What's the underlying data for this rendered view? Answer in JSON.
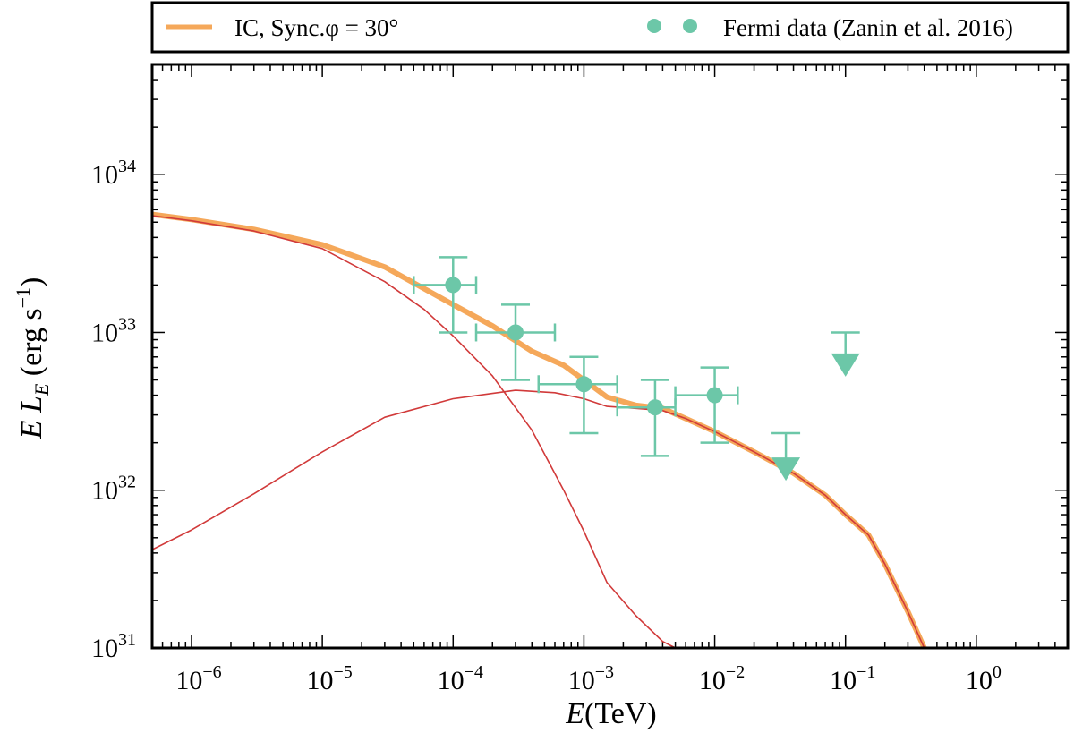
{
  "chart_data": {
    "type": "line",
    "x_scale": "log",
    "y_scale": "log",
    "xlim": [
      5e-07,
      5
    ],
    "ylim": [
      1e+31,
      5e+34
    ],
    "xlabel": {
      "italic": "E",
      "rest": "(TeV)"
    },
    "ylabel": {
      "italic_e": "E",
      "italic_l": "L",
      "sub": "E",
      "unit": "(erg s",
      "unit_sup": "−1",
      "unit_close": ")"
    },
    "x_ticks": [
      {
        "value": 1e-06,
        "base": "10",
        "exp": "−6"
      },
      {
        "value": 1e-05,
        "base": "10",
        "exp": "−5"
      },
      {
        "value": 0.0001,
        "base": "10",
        "exp": "−4"
      },
      {
        "value": 0.001,
        "base": "10",
        "exp": "−3"
      },
      {
        "value": 0.01,
        "base": "10",
        "exp": "−2"
      },
      {
        "value": 0.1,
        "base": "10",
        "exp": "−1"
      },
      {
        "value": 1,
        "base": "10",
        "exp": "0"
      }
    ],
    "y_ticks": [
      {
        "value": 1e+31,
        "base": "10",
        "exp": "31"
      },
      {
        "value": 1e+32,
        "base": "10",
        "exp": "32"
      },
      {
        "value": 1e+33,
        "base": "10",
        "exp": "33"
      },
      {
        "value": 1e+34,
        "base": "10",
        "exp": "34"
      }
    ],
    "legend": {
      "placement": "top, above plot",
      "entries": [
        {
          "label": "IC, Sync.φ = 30°",
          "kind": "line",
          "color": "#f5a85a"
        },
        {
          "label": "Fermi data (Zanin et al. 2016)",
          "kind": "markers",
          "color": "#6cc7a8"
        }
      ]
    },
    "series": [
      {
        "name": "IC, Sync.φ = 30°",
        "kind": "total",
        "color": "#f5a85a",
        "outline_color": "#d13a3a",
        "points": [
          [
            5e-07,
            5.6e+33
          ],
          [
            1e-06,
            5.2e+33
          ],
          [
            3e-06,
            4.5e+33
          ],
          [
            1e-05,
            3.6e+33
          ],
          [
            3e-05,
            2.6e+33
          ],
          [
            0.0001,
            1.5e+33
          ],
          [
            0.0002,
            1.1e+33
          ],
          [
            0.0004,
            7.6e+32
          ],
          [
            0.0007,
            6.2e+32
          ],
          [
            0.001,
            5e+32
          ],
          [
            0.0015,
            3.9e+32
          ],
          [
            0.0025,
            3.45e+32
          ],
          [
            0.004,
            3.3e+32
          ],
          [
            0.006,
            2.85e+32
          ],
          [
            0.01,
            2.35e+32
          ],
          [
            0.02,
            1.75e+32
          ],
          [
            0.04,
            1.28e+32
          ],
          [
            0.07,
            9.3e+31
          ],
          [
            0.1,
            7e+31
          ],
          [
            0.15,
            5.2e+31
          ],
          [
            0.2,
            3.4e+31
          ],
          [
            0.3,
            1.7e+31
          ],
          [
            0.4,
            1e+31
          ]
        ]
      },
      {
        "name": "",
        "kind": "synchrotron",
        "color": "#d13a3a",
        "points": [
          [
            5e-07,
            5.5e+33
          ],
          [
            1e-06,
            5.1e+33
          ],
          [
            3e-06,
            4.4e+33
          ],
          [
            1e-05,
            3.4e+33
          ],
          [
            3e-05,
            2.1e+33
          ],
          [
            6e-05,
            1.4e+33
          ],
          [
            0.0001,
            9.5e+32
          ],
          [
            0.0002,
            5.3e+32
          ],
          [
            0.0004,
            2.4e+32
          ],
          [
            0.0007,
            1e+32
          ],
          [
            0.001,
            5.5e+31
          ],
          [
            0.0015,
            2.6e+31
          ],
          [
            0.0025,
            1.6e+31
          ],
          [
            0.004,
            1.1e+31
          ],
          [
            0.005,
            1e+31
          ]
        ]
      },
      {
        "name": "",
        "kind": "inverse_compton",
        "color": "#d13a3a",
        "points": [
          [
            5e-07,
            4.2e+31
          ],
          [
            1e-06,
            5.6e+31
          ],
          [
            3e-06,
            9.5e+31
          ],
          [
            1e-05,
            1.75e+32
          ],
          [
            3e-05,
            2.9e+32
          ],
          [
            0.0001,
            3.8e+32
          ],
          [
            0.0003,
            4.3e+32
          ],
          [
            0.0006,
            4.15e+32
          ],
          [
            0.001,
            3.8e+32
          ],
          [
            0.0015,
            3.4e+32
          ],
          [
            0.0025,
            3.3e+32
          ],
          [
            0.004,
            3.2e+32
          ],
          [
            0.006,
            2.85e+32
          ],
          [
            0.01,
            2.35e+32
          ],
          [
            0.02,
            1.75e+32
          ],
          [
            0.04,
            1.28e+32
          ],
          [
            0.07,
            9.3e+31
          ],
          [
            0.1,
            7e+31
          ],
          [
            0.15,
            5.2e+31
          ],
          [
            0.2,
            3.4e+31
          ],
          [
            0.3,
            1.7e+31
          ],
          [
            0.4,
            1e+31
          ]
        ]
      }
    ],
    "data_points": {
      "name": "Fermi data (Zanin et al. 2016)",
      "color": "#6cc7a8",
      "points": [
        {
          "x": 0.0001,
          "y": 2e+33,
          "xerr": [
            5e-05,
            0.00015
          ],
          "yerr": [
            1e+33,
            3e+33
          ]
        },
        {
          "x": 0.0003,
          "y": 1e+33,
          "xerr": [
            0.00015,
            0.0006
          ],
          "yerr": [
            5e+32,
            1.5e+33
          ]
        },
        {
          "x": 0.001,
          "y": 4.7e+32,
          "xerr": [
            0.00045,
            0.0018
          ],
          "yerr": [
            2.3e+32,
            7e+32
          ]
        },
        {
          "x": 0.0035,
          "y": 3.35e+32,
          "xerr": [
            0.0018,
            0.005
          ],
          "yerr": [
            1.65e+32,
            5e+32
          ]
        },
        {
          "x": 0.01,
          "y": 4e+32,
          "xerr": [
            0.005,
            0.015
          ],
          "yerr": [
            2e+32,
            6e+32
          ]
        }
      ],
      "upper_limits": [
        {
          "x": 0.035,
          "y": 2.3e+32,
          "y_marker": 1.38e+32
        },
        {
          "x": 0.1,
          "y": 1e+33,
          "y_marker": 6.3e+32
        }
      ]
    }
  }
}
